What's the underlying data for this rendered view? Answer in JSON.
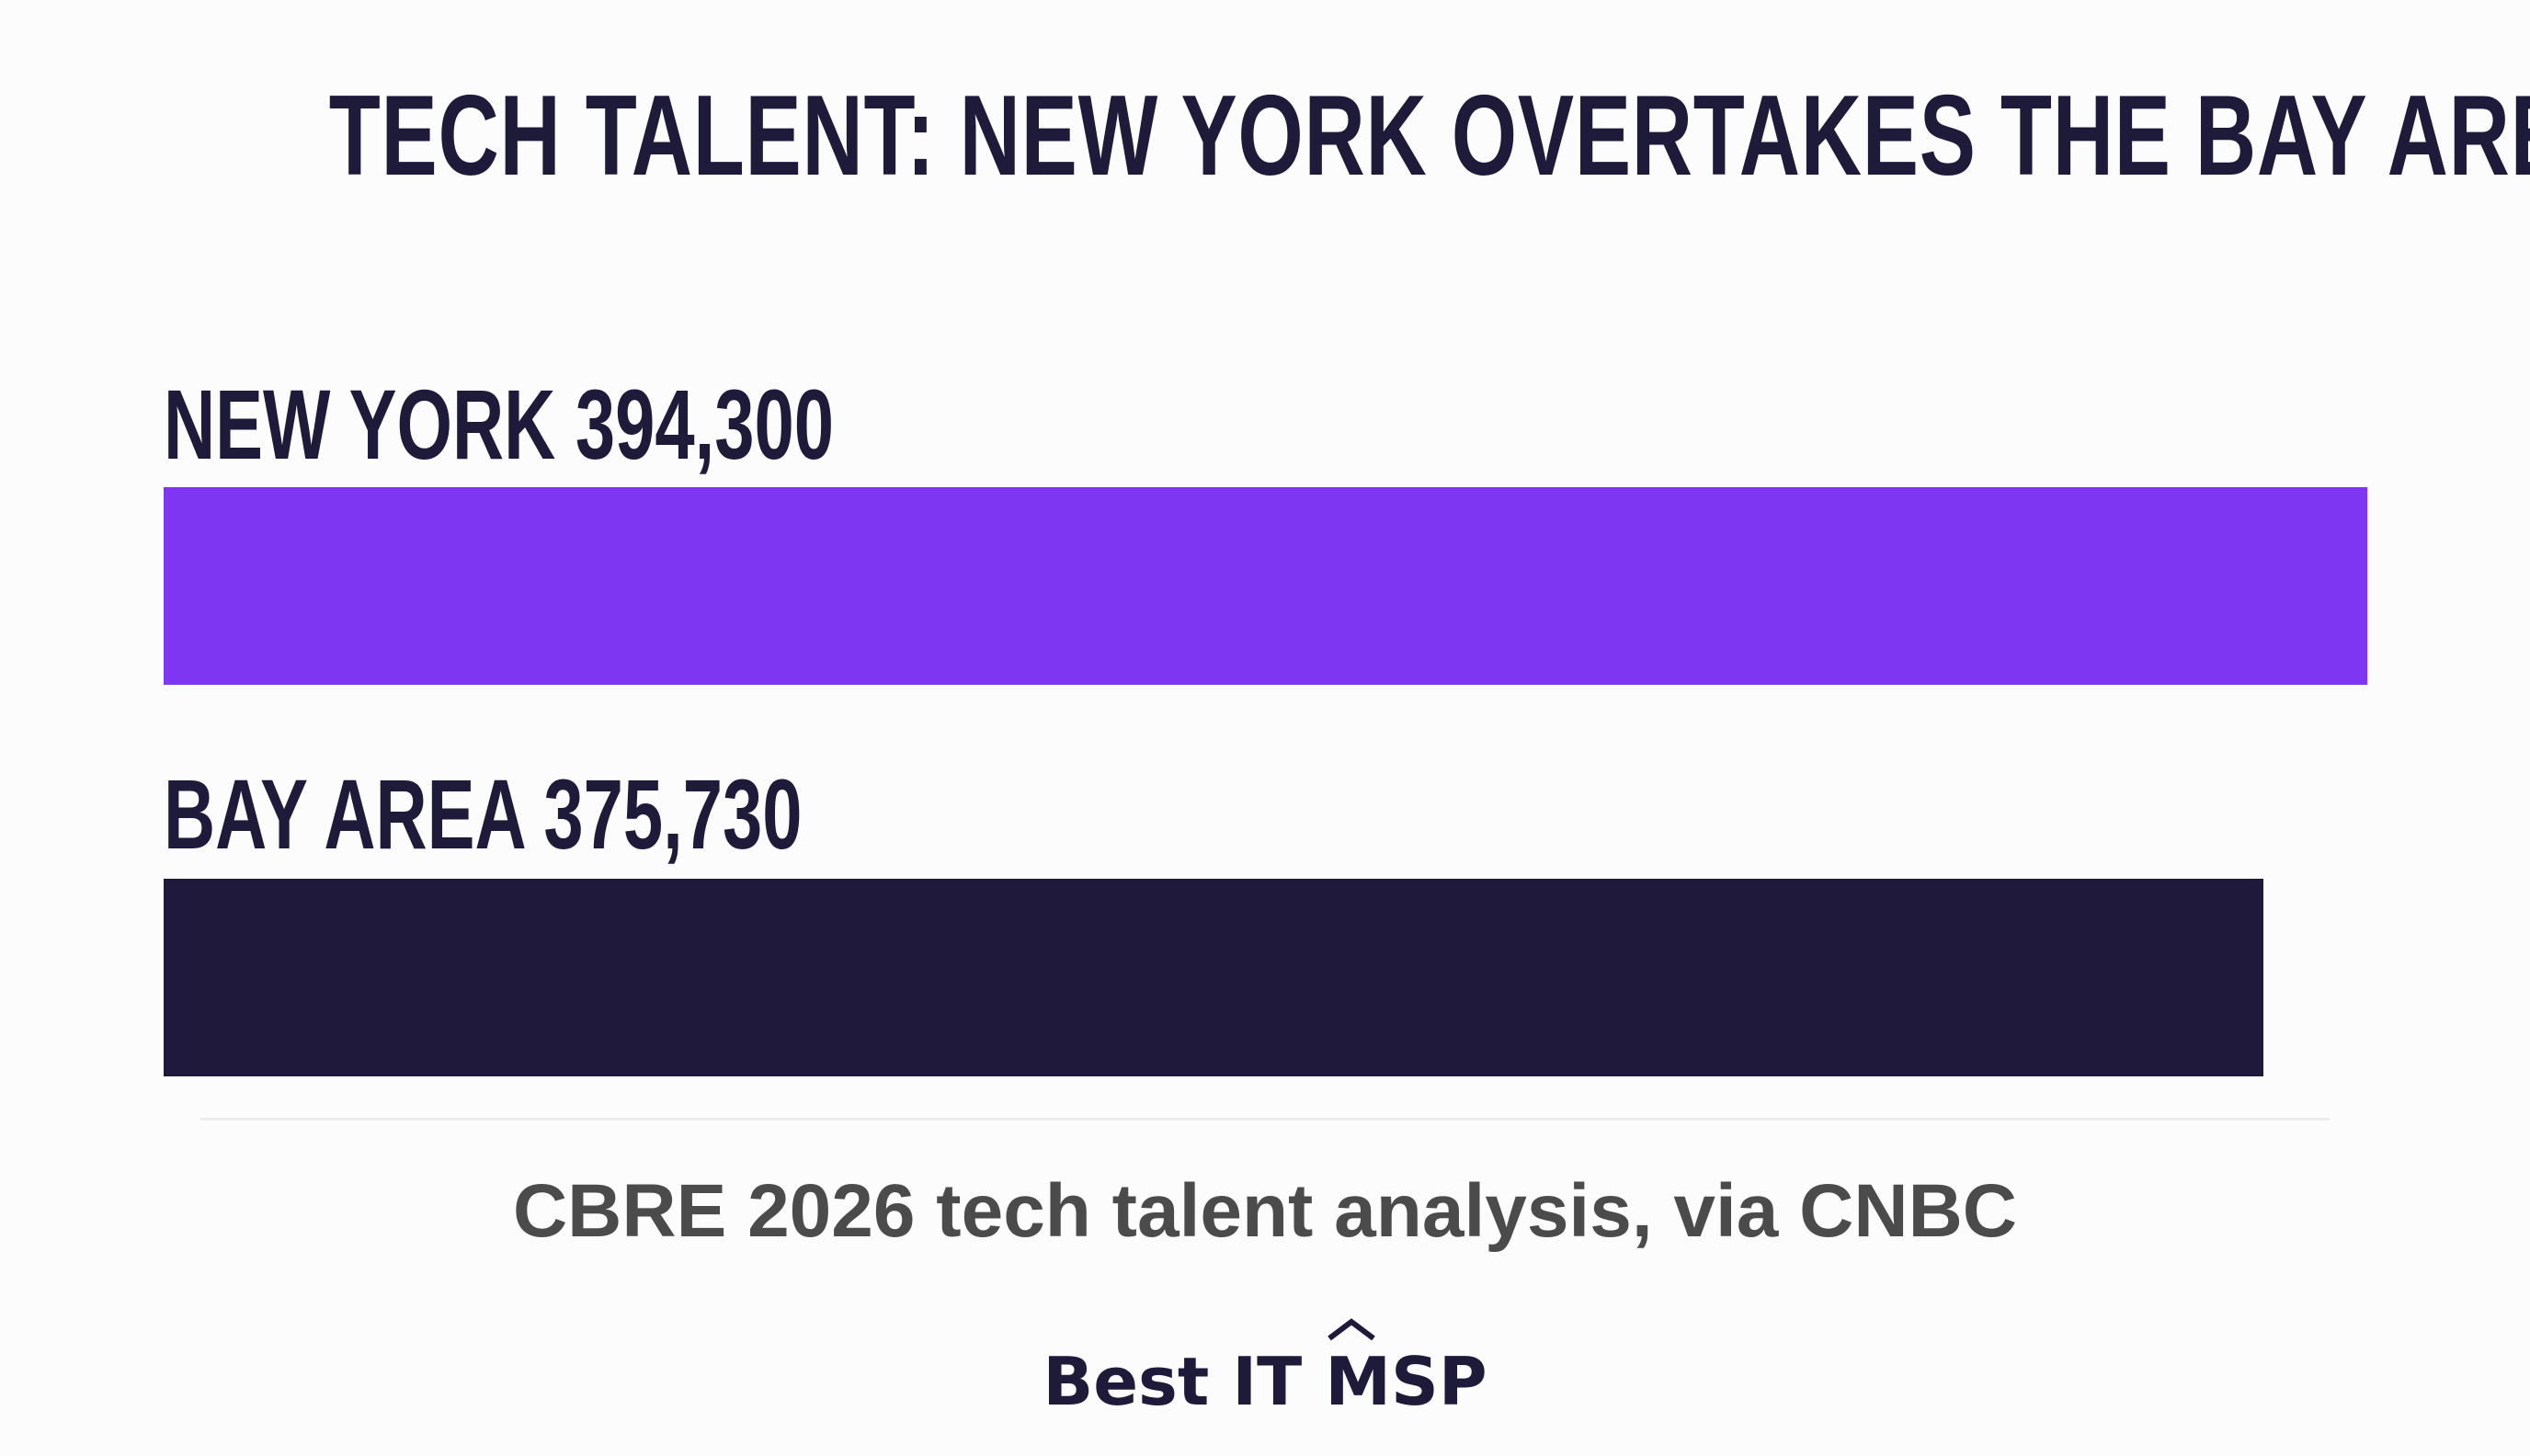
{
  "chart_data": {
    "type": "bar",
    "orientation": "horizontal",
    "title": "TECH TALENT: NEW YORK OVERTAKES THE BAY AREA",
    "categories": [
      "NEW YORK",
      "BAY AREA"
    ],
    "values": [
      394300,
      375730
    ],
    "value_labels": [
      "394,300",
      "375,730"
    ],
    "colors": [
      "#7e36f2",
      "#1f1a3b"
    ],
    "xlim": [
      0,
      394300
    ],
    "grid": false,
    "legend": "none"
  },
  "footer": {
    "source": "CBRE 2026 tech talent analysis, via CNBC",
    "brand": "Best IT MSP"
  }
}
